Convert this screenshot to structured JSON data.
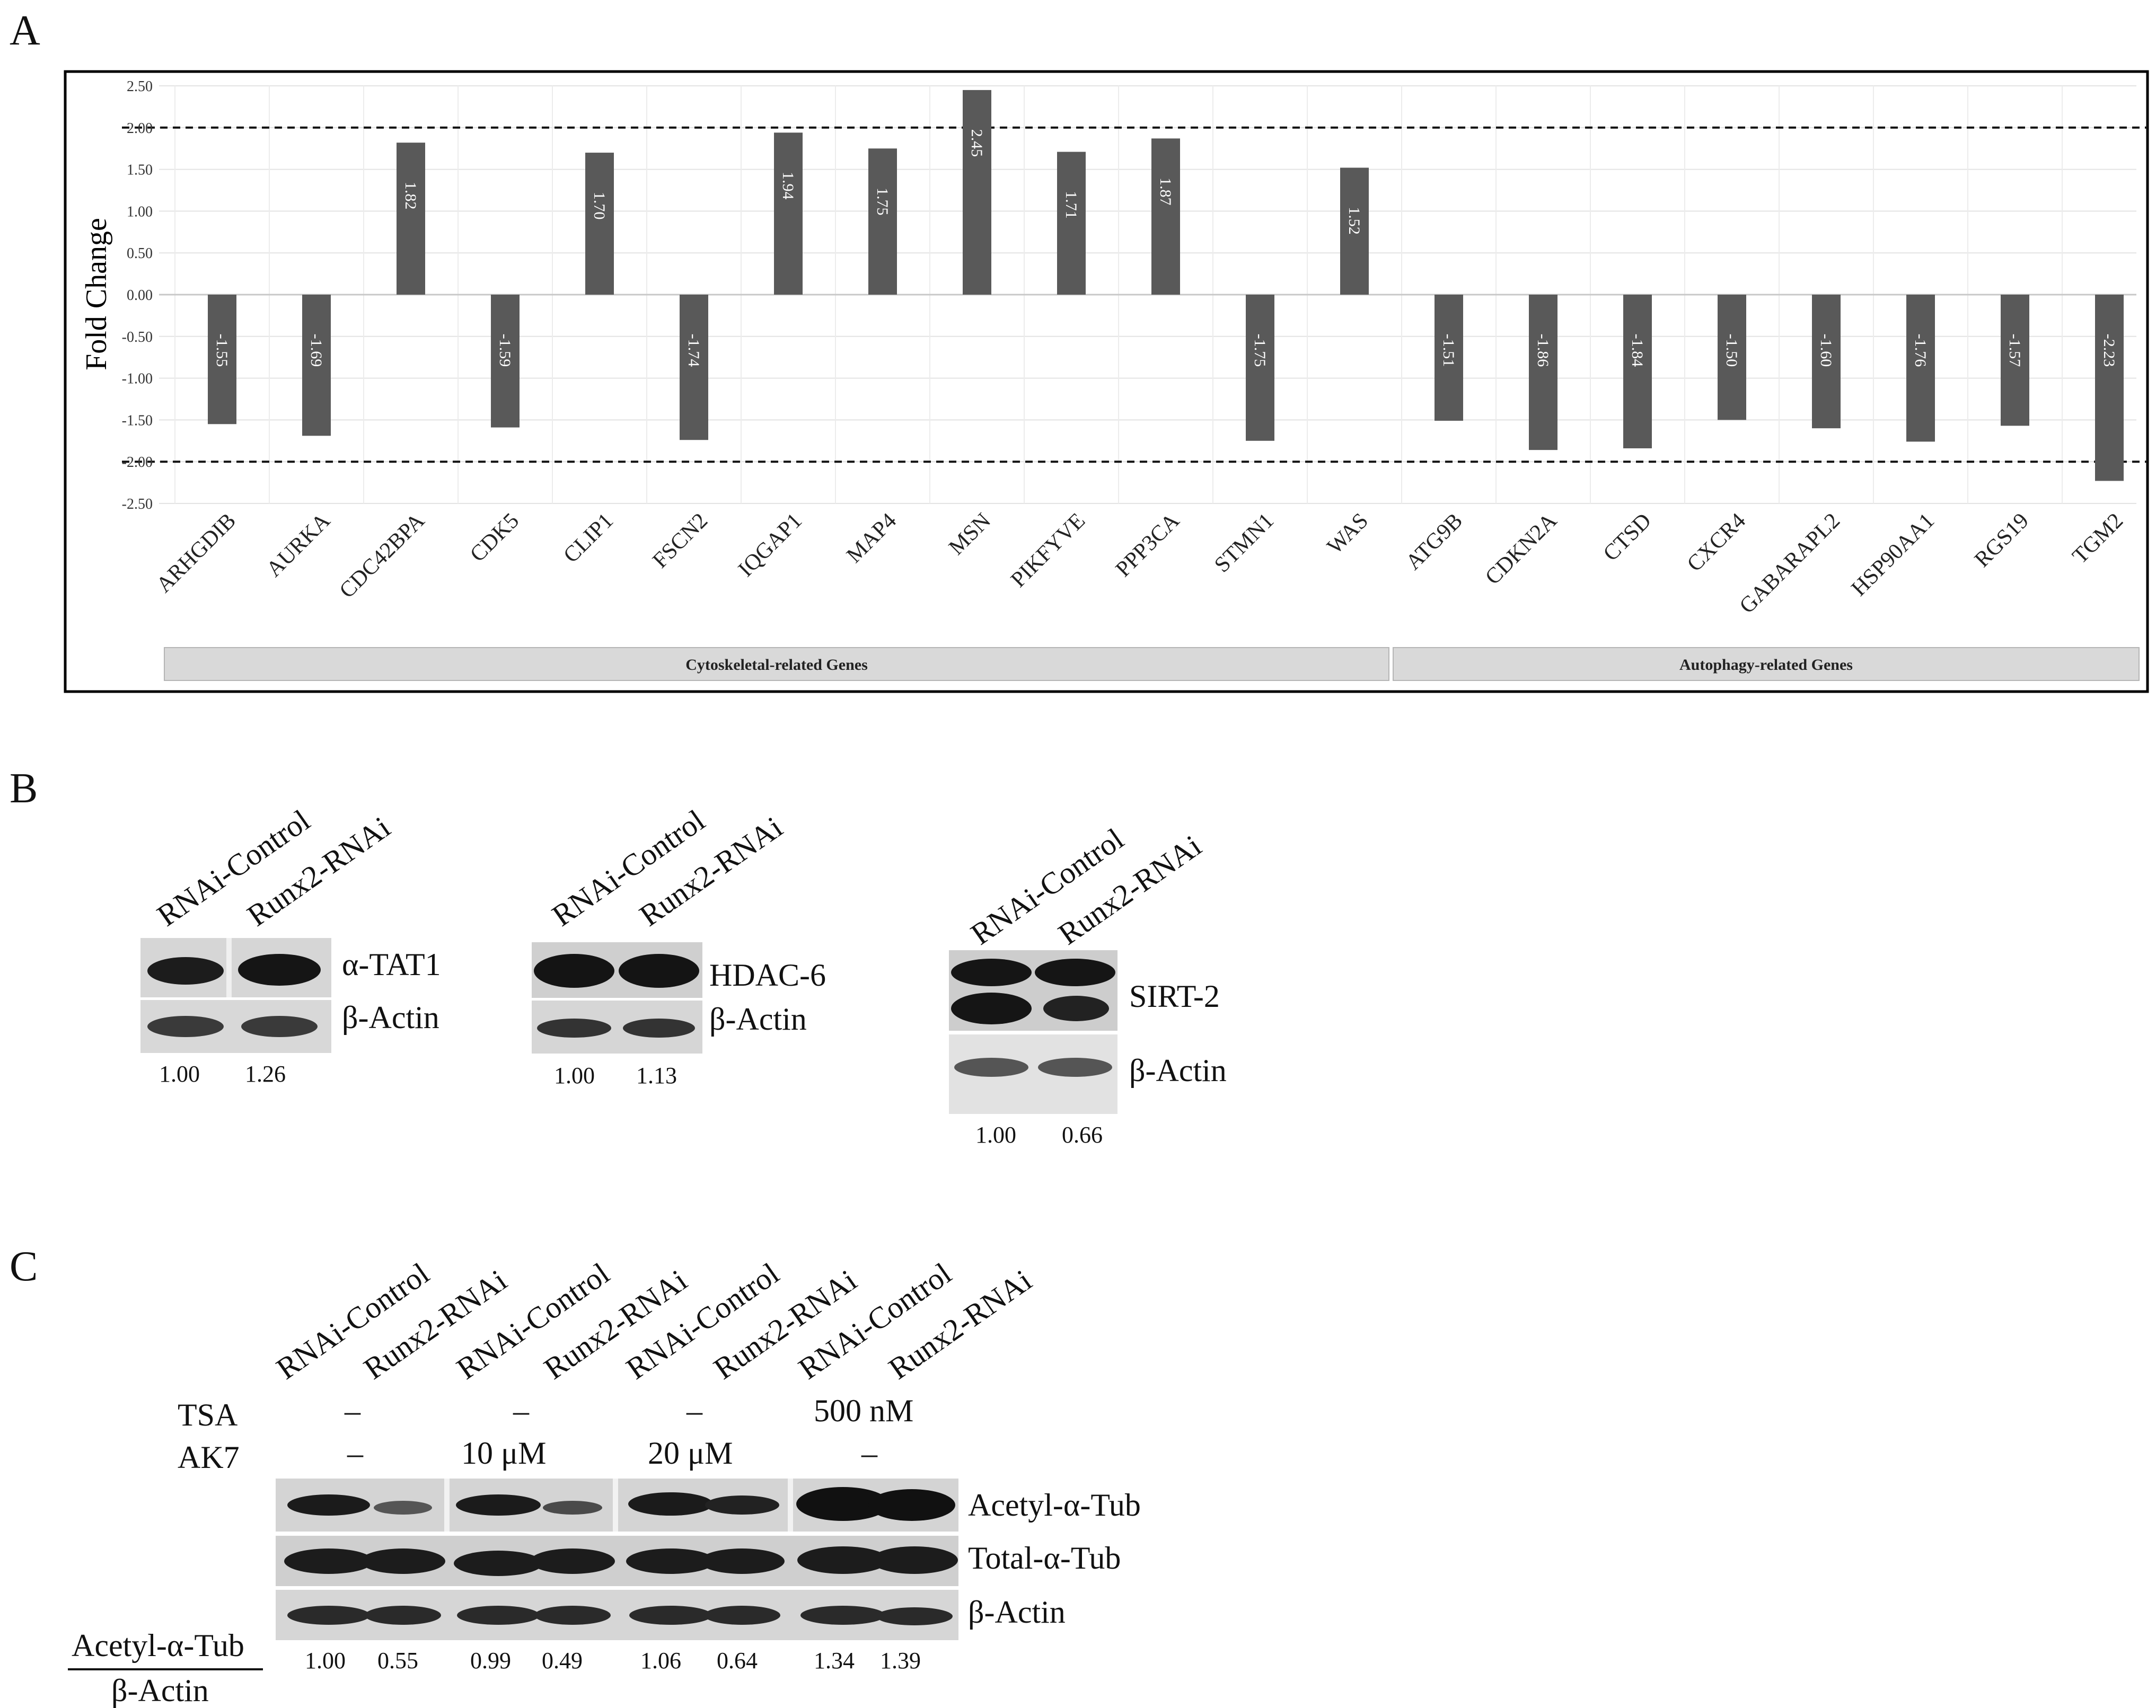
{
  "panels": {
    "a": "A",
    "b": "B",
    "c": "C"
  },
  "chart_data": {
    "type": "bar",
    "ylabel": "Fold Change",
    "ylim": [
      -2.5,
      2.5
    ],
    "yticks": [
      "2.50",
      "2.00",
      "1.50",
      "1.00",
      "0.50",
      "0.00",
      "-0.50",
      "-1.00",
      "-1.50",
      "-2.00",
      "-2.50"
    ],
    "threshold_lines": [
      2.0,
      -2.0
    ],
    "categories": [
      "ARHGDIB",
      "AURKA",
      "CDC42BPA",
      "CDK5",
      "CLIP1",
      "FSCN2",
      "IQGAP1",
      "MAP4",
      "MSN",
      "PIKFYVE",
      "PPP3CA",
      "STMN1",
      "WAS",
      "ATG9B",
      "CDKN2A",
      "CTSD",
      "CXCR4",
      "GABARAPL2",
      "HSP90AA1",
      "RGS19",
      "TGM2"
    ],
    "values": [
      -1.55,
      -1.69,
      1.82,
      -1.59,
      1.7,
      -1.74,
      1.94,
      1.75,
      2.45,
      1.71,
      1.87,
      -1.75,
      1.52,
      -1.51,
      -1.86,
      -1.84,
      -1.5,
      -1.6,
      -1.76,
      -1.57,
      -2.23
    ],
    "value_labels": [
      "-1.55",
      "-1.69",
      "1.82",
      "-1.59",
      "1.70",
      "-1.74",
      "1.94",
      "1.75",
      "2.45",
      "1.71",
      "1.87",
      "-1.75",
      "1.52",
      "-1.51",
      "-1.86",
      "-1.84",
      "-1.50",
      "-1.60",
      "-1.76",
      "-1.57",
      "-2.23"
    ],
    "groups": [
      {
        "label": "Cytoskeletal-related Genes",
        "start": 0,
        "end": 12
      },
      {
        "label": "Autophagy-related Genes",
        "start": 13,
        "end": 20
      }
    ],
    "bar_color": "#595959",
    "grid": true,
    "legend": "none"
  },
  "panel_b": {
    "lanes": {
      "control": "RNAi-Control",
      "knockdown": "Runx2-RNAi"
    },
    "blots": [
      {
        "target": "α-TAT1",
        "loading": "β-Actin",
        "quant": [
          "1.00",
          "1.26"
        ]
      },
      {
        "target": "HDAC-6",
        "loading": "β-Actin",
        "quant": [
          "1.00",
          "1.13"
        ]
      },
      {
        "target": "SIRT-2",
        "loading": "β-Actin",
        "quant": [
          "1.00",
          "0.66"
        ]
      }
    ]
  },
  "panel_c": {
    "lanes": [
      "RNAi-Control",
      "Runx2-RNAi",
      "RNAi-Control",
      "Runx2-RNAi",
      "RNAi-Control",
      "Runx2-RNAi",
      "RNAi-Control",
      "Runx2-RNAi"
    ],
    "tsa_label": "TSA",
    "ak7_label": "AK7",
    "tsa": [
      "–",
      "–",
      "–",
      "500 nM"
    ],
    "ak7": [
      "–",
      "10 μM",
      "20 μM",
      "–"
    ],
    "bands": [
      "Acetyl-α-Tub",
      "Total-α-Tub",
      "β-Actin"
    ],
    "ratio_numerator": "Acetyl-α-Tub",
    "ratio_denominator": "β-Actin",
    "quant": [
      "1.00",
      "0.55",
      "0.99",
      "0.49",
      "1.06",
      "0.64",
      "1.34",
      "1.39"
    ]
  }
}
